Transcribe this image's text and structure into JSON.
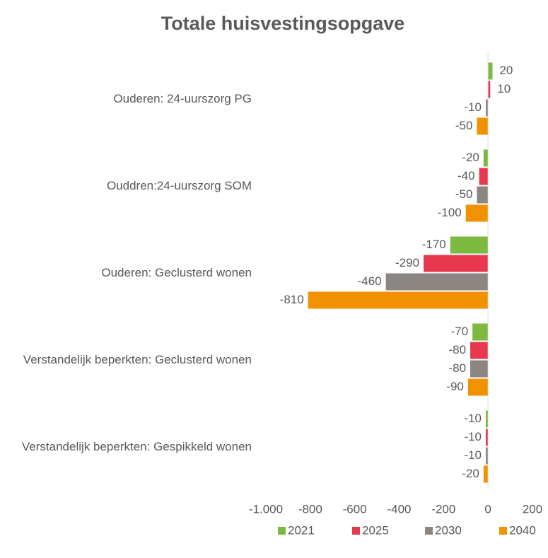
{
  "chart_data": {
    "type": "bar",
    "orientation": "horizontal",
    "title": "Totale huisvestingsopgave",
    "categories": [
      "Ouderen: 24-uurszorg PG",
      "Ouddren:24-uurszorg SOM",
      "Ouderen: Geclusterd wonen",
      "Verstandelijk beperkten: Geclusterd wonen",
      "Verstandelijk beperkten: Gespikkeld wonen"
    ],
    "series": [
      {
        "name": "2021",
        "color": "#7cb940",
        "values": [
          20,
          -20,
          -170,
          -70,
          -10
        ]
      },
      {
        "name": "2025",
        "color": "#e8384f",
        "values": [
          10,
          -40,
          -290,
          -80,
          -10
        ]
      },
      {
        "name": "2030",
        "color": "#8c8682",
        "values": [
          -10,
          -50,
          -460,
          -80,
          -10
        ]
      },
      {
        "name": "2040",
        "color": "#f29100",
        "values": [
          -50,
          -100,
          -810,
          -90,
          -20
        ]
      }
    ],
    "xlim": [
      -1000,
      200
    ],
    "xticks": [
      {
        "value": -1000,
        "label": "-1.000"
      },
      -800,
      -600,
      -400,
      -200,
      0,
      200
    ],
    "grid": false,
    "legend": "bottom"
  }
}
